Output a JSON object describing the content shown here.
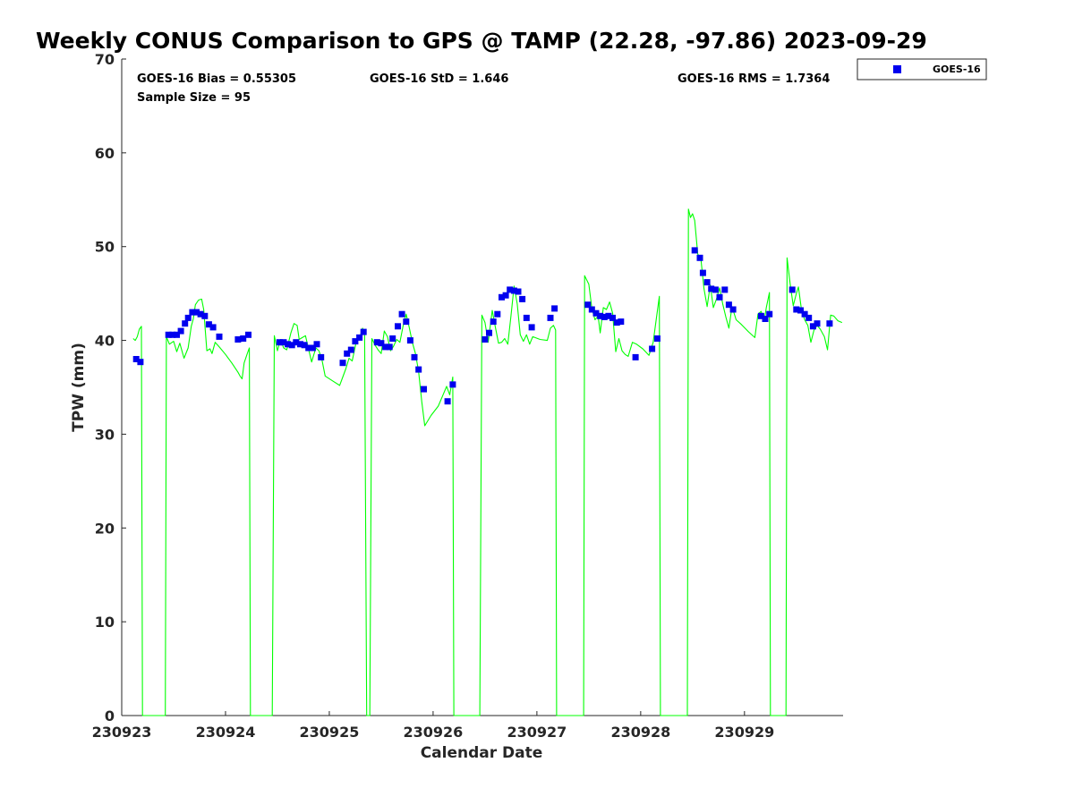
{
  "chart_data": {
    "type": "scatter",
    "title": "Weekly CONUS Comparison to GPS @ TAMP (22.28, -97.86) 2023-09-29",
    "xlabel": "Calendar Date",
    "ylabel": "TPW (mm)",
    "xlim": [
      230923.0,
      230929.95
    ],
    "ylim": [
      0,
      70
    ],
    "x_tick_labels": [
      "230923",
      "230924",
      "230925",
      "230926",
      "230927",
      "230928",
      "230929"
    ],
    "y_tick_labels": [
      "0",
      "10",
      "20",
      "30",
      "40",
      "50",
      "60",
      "70"
    ],
    "grid": false,
    "legend_position": "top-right",
    "stats": {
      "bias": "GOES-16 Bias = 0.55305",
      "std": "GOES-16 StD = 1.646",
      "rms": "GOES-16 RMS = 1.7364",
      "sample": "Sample Size = 95"
    },
    "colors": {
      "goes": "#0000ee",
      "gps": "#00ff00"
    },
    "series": [
      {
        "name": "GOES-16",
        "marker": "square",
        "points": [
          [
            230923.14,
            38.0
          ],
          [
            230923.18,
            37.7
          ],
          [
            230923.45,
            40.6
          ],
          [
            230923.49,
            40.6
          ],
          [
            230923.53,
            40.6
          ],
          [
            230923.57,
            41.0
          ],
          [
            230923.61,
            41.8
          ],
          [
            230923.64,
            42.4
          ],
          [
            230923.68,
            43.0
          ],
          [
            230923.72,
            43.0
          ],
          [
            230923.76,
            42.8
          ],
          [
            230923.8,
            42.6
          ],
          [
            230923.84,
            41.7
          ],
          [
            230923.88,
            41.4
          ],
          [
            230923.94,
            40.4
          ],
          [
            230924.12,
            40.1
          ],
          [
            230924.17,
            40.2
          ],
          [
            230924.22,
            40.6
          ],
          [
            230924.52,
            39.8
          ],
          [
            230924.56,
            39.8
          ],
          [
            230924.6,
            39.6
          ],
          [
            230924.64,
            39.5
          ],
          [
            230924.68,
            39.8
          ],
          [
            230924.72,
            39.6
          ],
          [
            230924.76,
            39.5
          ],
          [
            230924.8,
            39.2
          ],
          [
            230924.84,
            39.2
          ],
          [
            230924.88,
            39.6
          ],
          [
            230924.92,
            38.2
          ],
          [
            230925.13,
            37.6
          ],
          [
            230925.17,
            38.6
          ],
          [
            230925.21,
            39.0
          ],
          [
            230925.25,
            39.9
          ],
          [
            230925.29,
            40.3
          ],
          [
            230925.33,
            40.9
          ],
          [
            230925.46,
            39.8
          ],
          [
            230925.5,
            39.7
          ],
          [
            230925.54,
            39.3
          ],
          [
            230925.58,
            39.3
          ],
          [
            230925.61,
            40.2
          ],
          [
            230925.66,
            41.5
          ],
          [
            230925.7,
            42.8
          ],
          [
            230925.74,
            42.0
          ],
          [
            230925.78,
            40.0
          ],
          [
            230925.82,
            38.2
          ],
          [
            230925.86,
            36.9
          ],
          [
            230925.91,
            34.8
          ],
          [
            230926.14,
            33.5
          ],
          [
            230926.19,
            35.3
          ],
          [
            230926.5,
            40.1
          ],
          [
            230926.54,
            40.8
          ],
          [
            230926.58,
            42.0
          ],
          [
            230926.62,
            42.8
          ],
          [
            230926.66,
            44.6
          ],
          [
            230926.7,
            44.8
          ],
          [
            230926.74,
            45.4
          ],
          [
            230926.78,
            45.3
          ],
          [
            230926.82,
            45.2
          ],
          [
            230926.86,
            44.4
          ],
          [
            230926.9,
            42.4
          ],
          [
            230926.95,
            41.4
          ],
          [
            230927.13,
            42.4
          ],
          [
            230927.17,
            43.4
          ],
          [
            230927.49,
            43.8
          ],
          [
            230927.53,
            43.3
          ],
          [
            230927.57,
            42.9
          ],
          [
            230927.61,
            42.6
          ],
          [
            230927.65,
            42.5
          ],
          [
            230927.69,
            42.6
          ],
          [
            230927.73,
            42.4
          ],
          [
            230927.77,
            41.9
          ],
          [
            230927.81,
            42.0
          ],
          [
            230927.95,
            38.2
          ],
          [
            230928.11,
            39.1
          ],
          [
            230928.16,
            40.2
          ],
          [
            230928.52,
            49.6
          ],
          [
            230928.57,
            48.8
          ],
          [
            230928.6,
            47.2
          ],
          [
            230928.64,
            46.2
          ],
          [
            230928.68,
            45.5
          ],
          [
            230928.72,
            45.4
          ],
          [
            230928.76,
            44.6
          ],
          [
            230928.81,
            45.4
          ],
          [
            230928.85,
            43.8
          ],
          [
            230928.89,
            43.3
          ],
          [
            230929.16,
            42.6
          ],
          [
            230929.2,
            42.3
          ],
          [
            230929.24,
            42.8
          ],
          [
            230929.46,
            45.4
          ],
          [
            230929.5,
            43.3
          ],
          [
            230929.54,
            43.2
          ],
          [
            230929.58,
            42.8
          ],
          [
            230929.62,
            42.4
          ],
          [
            230929.66,
            41.5
          ],
          [
            230929.7,
            41.8
          ],
          [
            230929.82,
            41.8
          ]
        ]
      },
      {
        "name": "",
        "line": true,
        "points": [
          [
            230923.11,
            40.2
          ],
          [
            230923.13,
            40.0
          ],
          [
            230923.15,
            40.4
          ],
          [
            230923.17,
            41.2
          ],
          [
            230923.19,
            41.5
          ],
          [
            230923.2,
            0.0
          ],
          [
            230923.42,
            0.0
          ],
          [
            230923.43,
            40.4
          ],
          [
            230923.46,
            39.6
          ],
          [
            230923.5,
            39.9
          ],
          [
            230923.53,
            38.8
          ],
          [
            230923.56,
            39.7
          ],
          [
            230923.6,
            38.1
          ],
          [
            230923.64,
            39.2
          ],
          [
            230923.67,
            41.5
          ],
          [
            230923.69,
            42.3
          ],
          [
            230923.71,
            43.8
          ],
          [
            230923.74,
            44.3
          ],
          [
            230923.77,
            44.4
          ],
          [
            230923.79,
            43.3
          ],
          [
            230923.82,
            38.9
          ],
          [
            230923.85,
            39.1
          ],
          [
            230923.87,
            38.6
          ],
          [
            230923.9,
            39.8
          ],
          [
            230923.94,
            39.3
          ],
          [
            230924.0,
            38.5
          ],
          [
            230924.06,
            37.6
          ],
          [
            230924.12,
            36.6
          ],
          [
            230924.14,
            36.2
          ],
          [
            230924.16,
            35.9
          ],
          [
            230924.18,
            37.6
          ],
          [
            230924.21,
            38.6
          ],
          [
            230924.23,
            39.2
          ],
          [
            230924.24,
            0.0
          ],
          [
            230924.45,
            0.0
          ],
          [
            230924.47,
            40.5
          ],
          [
            230924.5,
            38.9
          ],
          [
            230924.53,
            40.1
          ],
          [
            230924.56,
            39.2
          ],
          [
            230924.59,
            39.0
          ],
          [
            230924.63,
            40.8
          ],
          [
            230924.66,
            41.8
          ],
          [
            230924.69,
            41.6
          ],
          [
            230924.71,
            40.1
          ],
          [
            230924.74,
            40.3
          ],
          [
            230924.77,
            40.5
          ],
          [
            230924.8,
            39.1
          ],
          [
            230924.83,
            37.7
          ],
          [
            230924.87,
            39.2
          ],
          [
            230924.9,
            38.9
          ],
          [
            230924.93,
            37.9
          ],
          [
            230924.96,
            36.2
          ],
          [
            230925.03,
            35.7
          ],
          [
            230925.1,
            35.2
          ],
          [
            230925.13,
            36.1
          ],
          [
            230925.16,
            37.0
          ],
          [
            230925.19,
            38.1
          ],
          [
            230925.22,
            37.8
          ],
          [
            230925.26,
            39.9
          ],
          [
            230925.29,
            40.2
          ],
          [
            230925.32,
            41.3
          ],
          [
            230925.34,
            40.6
          ],
          [
            230925.36,
            0.0
          ],
          [
            230925.39,
            0.0
          ],
          [
            230925.41,
            40.2
          ],
          [
            230925.44,
            39.5
          ],
          [
            230925.47,
            39.0
          ],
          [
            230925.5,
            38.6
          ],
          [
            230925.53,
            41.0
          ],
          [
            230925.56,
            40.4
          ],
          [
            230925.59,
            38.9
          ],
          [
            230925.62,
            39.4
          ],
          [
            230925.65,
            40.1
          ],
          [
            230925.68,
            39.8
          ],
          [
            230925.71,
            41.5
          ],
          [
            230925.74,
            42.8
          ],
          [
            230925.77,
            41.4
          ],
          [
            230925.8,
            39.8
          ],
          [
            230925.83,
            38.6
          ],
          [
            230925.86,
            36.7
          ],
          [
            230925.89,
            33.5
          ],
          [
            230925.92,
            30.9
          ],
          [
            230925.98,
            32.0
          ],
          [
            230926.05,
            33.0
          ],
          [
            230926.1,
            34.3
          ],
          [
            230926.13,
            35.1
          ],
          [
            230926.16,
            34.2
          ],
          [
            230926.19,
            36.1
          ],
          [
            230926.2,
            0.0
          ],
          [
            230926.45,
            0.0
          ],
          [
            230926.47,
            42.7
          ],
          [
            230926.5,
            41.9
          ],
          [
            230926.53,
            39.8
          ],
          [
            230926.57,
            43.2
          ],
          [
            230926.6,
            41.4
          ],
          [
            230926.63,
            39.7
          ],
          [
            230926.66,
            39.8
          ],
          [
            230926.69,
            40.2
          ],
          [
            230926.72,
            39.6
          ],
          [
            230926.75,
            42.6
          ],
          [
            230926.78,
            45.8
          ],
          [
            230926.81,
            43.9
          ],
          [
            230926.84,
            40.6
          ],
          [
            230926.87,
            39.9
          ],
          [
            230926.9,
            40.6
          ],
          [
            230926.93,
            39.6
          ],
          [
            230926.96,
            40.4
          ],
          [
            230927.03,
            40.1
          ],
          [
            230927.1,
            40.0
          ],
          [
            230927.13,
            41.3
          ],
          [
            230927.16,
            41.6
          ],
          [
            230927.18,
            41.1
          ],
          [
            230927.19,
            0.0
          ],
          [
            230927.45,
            0.0
          ],
          [
            230927.46,
            46.9
          ],
          [
            230927.5,
            46.0
          ],
          [
            230927.53,
            43.4
          ],
          [
            230927.56,
            42.2
          ],
          [
            230927.59,
            42.6
          ],
          [
            230927.61,
            40.8
          ],
          [
            230927.64,
            43.5
          ],
          [
            230927.67,
            43.3
          ],
          [
            230927.7,
            44.1
          ],
          [
            230927.73,
            42.9
          ],
          [
            230927.76,
            38.8
          ],
          [
            230927.79,
            40.2
          ],
          [
            230927.82,
            38.9
          ],
          [
            230927.85,
            38.5
          ],
          [
            230927.88,
            38.3
          ],
          [
            230927.92,
            39.8
          ],
          [
            230927.96,
            39.6
          ],
          [
            230928.02,
            39.1
          ],
          [
            230928.08,
            38.4
          ],
          [
            230928.12,
            39.8
          ],
          [
            230928.15,
            42.3
          ],
          [
            230928.18,
            44.7
          ],
          [
            230928.19,
            0.0
          ],
          [
            230928.45,
            0.0
          ],
          [
            230928.46,
            54.0
          ],
          [
            230928.48,
            53.1
          ],
          [
            230928.5,
            53.5
          ],
          [
            230928.52,
            52.8
          ],
          [
            230928.55,
            49.2
          ],
          [
            230928.58,
            48.7
          ],
          [
            230928.61,
            45.5
          ],
          [
            230928.64,
            43.6
          ],
          [
            230928.67,
            45.9
          ],
          [
            230928.7,
            43.5
          ],
          [
            230928.73,
            44.4
          ],
          [
            230928.76,
            45.6
          ],
          [
            230928.79,
            43.9
          ],
          [
            230928.82,
            42.5
          ],
          [
            230928.85,
            41.3
          ],
          [
            230928.88,
            43.6
          ],
          [
            230928.92,
            42.2
          ],
          [
            230928.97,
            41.7
          ],
          [
            230929.04,
            40.9
          ],
          [
            230929.1,
            40.3
          ],
          [
            230929.13,
            42.8
          ],
          [
            230929.16,
            43.1
          ],
          [
            230929.19,
            42.1
          ],
          [
            230929.21,
            43.5
          ],
          [
            230929.24,
            45.1
          ],
          [
            230929.25,
            0.0
          ],
          [
            230929.4,
            0.0
          ],
          [
            230929.41,
            48.8
          ],
          [
            230929.44,
            46.0
          ],
          [
            230929.47,
            43.7
          ],
          [
            230929.5,
            45.0
          ],
          [
            230929.52,
            45.7
          ],
          [
            230929.55,
            43.2
          ],
          [
            230929.58,
            42.2
          ],
          [
            230929.61,
            41.6
          ],
          [
            230929.64,
            39.8
          ],
          [
            230929.67,
            41.1
          ],
          [
            230929.7,
            41.6
          ],
          [
            230929.73,
            41.2
          ],
          [
            230929.77,
            40.4
          ],
          [
            230929.8,
            39.0
          ],
          [
            230929.83,
            42.7
          ],
          [
            230929.86,
            42.6
          ],
          [
            230929.9,
            42.1
          ],
          [
            230929.94,
            41.9
          ]
        ]
      }
    ]
  }
}
